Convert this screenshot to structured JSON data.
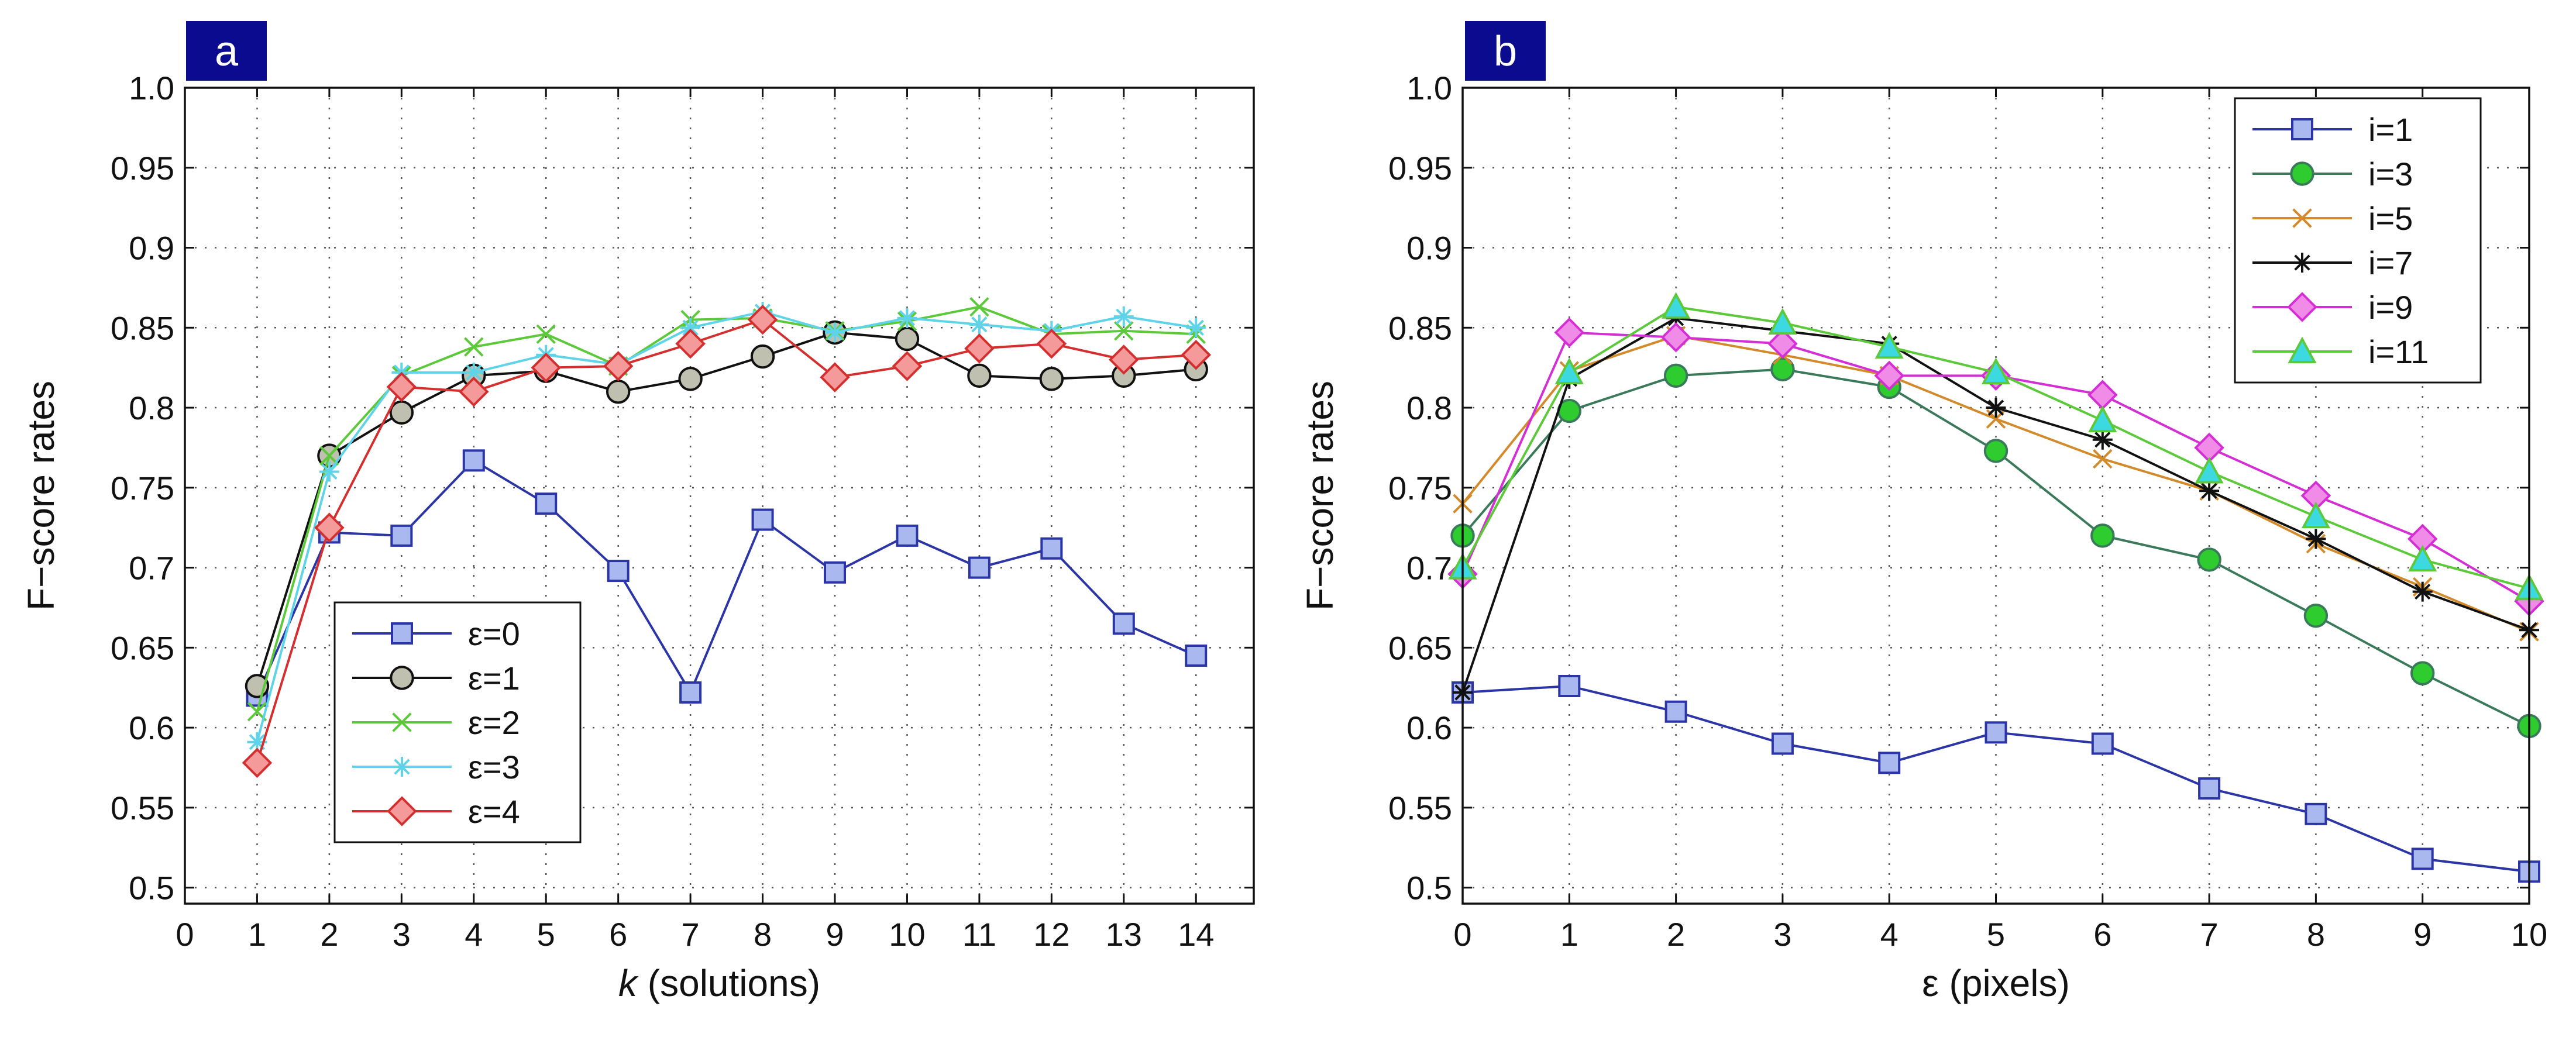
{
  "chart_data": [
    {
      "type": "line",
      "panel_label": "a",
      "xlabel_italic": "k",
      "xlabel_rest": " (solutions)",
      "ylabel": "F−score rates",
      "xlim": [
        0,
        14.8
      ],
      "ylim": [
        0.49,
        1.0
      ],
      "xticks": [
        "0",
        "1",
        "2",
        "3",
        "4",
        "5",
        "6",
        "7",
        "8",
        "9",
        "10",
        "11",
        "12",
        "13",
        "14"
      ],
      "yticks": [
        "0.5",
        "0.55",
        "0.6",
        "0.65",
        "0.7",
        "0.75",
        "0.8",
        "0.85",
        "0.9",
        "0.95",
        "1.0"
      ],
      "grid": true,
      "legend_position": "bottom-left",
      "x": [
        1,
        2,
        3,
        4,
        5,
        6,
        7,
        8,
        9,
        10,
        11,
        12,
        13,
        14
      ],
      "series": [
        {
          "name": "ε=0",
          "color": "#2b35a6",
          "marker": "square",
          "marker_fill": "#a9b8ef",
          "values": [
            0.62,
            0.722,
            0.72,
            0.767,
            0.74,
            0.698,
            0.622,
            0.73,
            0.697,
            0.72,
            0.7,
            0.712,
            0.665,
            0.645
          ]
        },
        {
          "name": "ε=1",
          "color": "#111111",
          "marker": "circle",
          "marker_fill": "#c0c0b0",
          "values": [
            0.626,
            0.77,
            0.797,
            0.82,
            0.823,
            0.81,
            0.818,
            0.832,
            0.847,
            0.843,
            0.82,
            0.818,
            0.82,
            0.824
          ]
        },
        {
          "name": "ε=2",
          "color": "#5cc93a",
          "marker": "x",
          "marker_fill": "none",
          "values": [
            0.61,
            0.77,
            0.82,
            0.838,
            0.846,
            0.826,
            0.855,
            0.856,
            0.848,
            0.854,
            0.863,
            0.846,
            0.848,
            0.846
          ]
        },
        {
          "name": "ε=3",
          "color": "#5fd3e8",
          "marker": "asterisk",
          "marker_fill": "none",
          "values": [
            0.591,
            0.76,
            0.822,
            0.822,
            0.833,
            0.827,
            0.85,
            0.86,
            0.847,
            0.856,
            0.852,
            0.848,
            0.857,
            0.85
          ]
        },
        {
          "name": "ε=4",
          "color": "#d42f2f",
          "marker": "diamond",
          "marker_fill": "#f59a9a",
          "values": [
            0.578,
            0.725,
            0.813,
            0.81,
            0.825,
            0.826,
            0.84,
            0.855,
            0.819,
            0.826,
            0.837,
            0.84,
            0.83,
            0.833
          ]
        }
      ]
    },
    {
      "type": "line",
      "panel_label": "b",
      "xlabel_italic": "",
      "xlabel_rest": "ε (pixels)",
      "ylabel": "F−score rates",
      "xlim": [
        0,
        10
      ],
      "ylim": [
        0.49,
        1.0
      ],
      "xticks": [
        "0",
        "1",
        "2",
        "3",
        "4",
        "5",
        "6",
        "7",
        "8",
        "9",
        "10"
      ],
      "yticks": [
        "0.5",
        "0.55",
        "0.6",
        "0.65",
        "0.7",
        "0.75",
        "0.8",
        "0.85",
        "0.9",
        "0.95",
        "1.0"
      ],
      "grid": true,
      "legend_position": "top-right",
      "x": [
        0,
        1,
        2,
        3,
        4,
        5,
        6,
        7,
        8,
        9,
        10
      ],
      "series": [
        {
          "name": "i=1",
          "color": "#2b35a6",
          "marker": "square",
          "marker_fill": "#a9b8ef",
          "values": [
            0.622,
            0.626,
            0.61,
            0.59,
            0.578,
            0.597,
            0.59,
            0.562,
            0.546,
            0.518,
            0.51
          ]
        },
        {
          "name": "i=3",
          "color": "#3a7a5a",
          "marker": "circle",
          "marker_fill": "#2ecc2e",
          "values": [
            0.72,
            0.798,
            0.82,
            0.824,
            0.813,
            0.773,
            0.72,
            0.705,
            0.67,
            0.634,
            0.601
          ]
        },
        {
          "name": "i=5",
          "color": "#d28a2a",
          "marker": "x",
          "marker_fill": "none",
          "values": [
            0.74,
            0.823,
            0.845,
            0.833,
            0.82,
            0.793,
            0.768,
            0.748,
            0.715,
            0.688,
            0.66
          ]
        },
        {
          "name": "i=7",
          "color": "#111111",
          "marker": "asterisk",
          "marker_fill": "none",
          "values": [
            0.622,
            0.818,
            0.856,
            0.848,
            0.84,
            0.8,
            0.78,
            0.748,
            0.718,
            0.685,
            0.661
          ]
        },
        {
          "name": "i=9",
          "color": "#d42fd4",
          "marker": "diamond",
          "marker_fill": "#f08ce8",
          "values": [
            0.696,
            0.847,
            0.844,
            0.84,
            0.82,
            0.82,
            0.808,
            0.775,
            0.745,
            0.718,
            0.679
          ]
        },
        {
          "name": "i=11",
          "color": "#5cc93a",
          "marker": "triangle",
          "marker_fill": "#3cd9e0",
          "values": [
            0.7,
            0.822,
            0.863,
            0.853,
            0.838,
            0.822,
            0.792,
            0.76,
            0.732,
            0.705,
            0.687
          ]
        }
      ]
    }
  ]
}
